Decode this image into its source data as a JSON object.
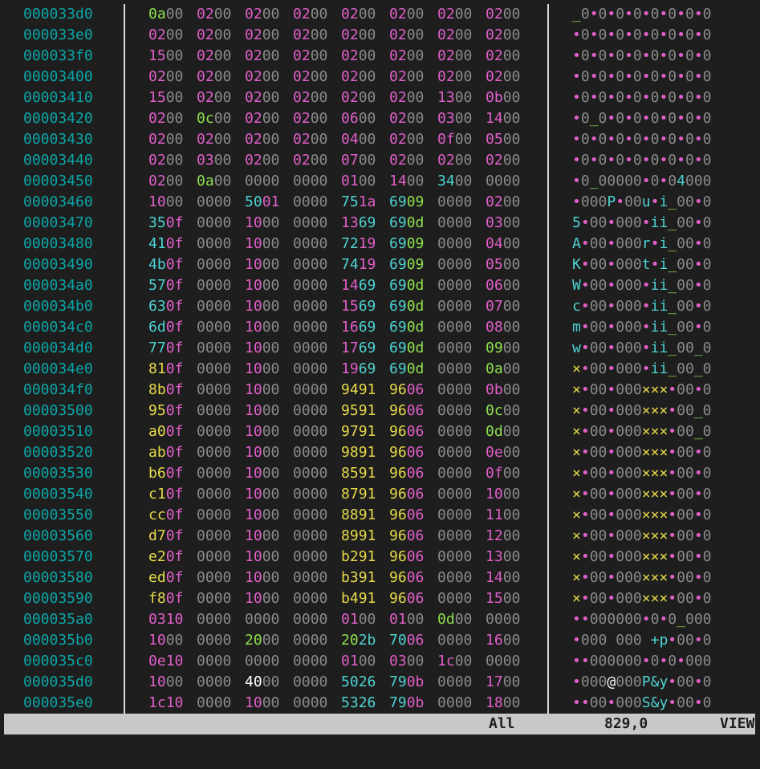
{
  "palette": {
    "offset": "#0aa6a6",
    "m": "#e05fc8",
    "z": "#8a8a8a",
    "c": "#4fd1d1",
    "y": "#e6d94a",
    "g": "#8ee04f",
    "w": "#ffffff",
    "status_bg": "#c6c9c6"
  },
  "rows": [
    {
      "offset": "000033d0",
      "groups": [
        "0a00",
        "0200",
        "0200",
        "0200",
        "0200",
        "0200",
        "0200",
        "0200"
      ],
      "ascii": "_0•0•0•0•0•0•0•0",
      "hex_colors": [
        "gz",
        "mz",
        "mz",
        "mz",
        "mz",
        "mz",
        "mz",
        "mz"
      ],
      "ascii_colors": "gzmzmzmzmzmzmzmz"
    },
    {
      "offset": "000033e0",
      "groups": [
        "0200",
        "0200",
        "0200",
        "0200",
        "0200",
        "0200",
        "0200",
        "0200"
      ],
      "ascii": "•0•0•0•0•0•0•0•0",
      "hex_colors": [
        "mz",
        "mz",
        "mz",
        "mz",
        "mz",
        "mz",
        "mz",
        "mz"
      ],
      "ascii_colors": "mzmzmzmzmzmzmzmz"
    },
    {
      "offset": "000033f0",
      "groups": [
        "1500",
        "0200",
        "0200",
        "0200",
        "0200",
        "0200",
        "0200",
        "0200"
      ],
      "ascii": "•0•0•0•0•0•0•0•0",
      "hex_colors": [
        "mz",
        "mz",
        "mz",
        "mz",
        "mz",
        "mz",
        "mz",
        "mz"
      ],
      "ascii_colors": "mzmzmzmzmzmzmzmz"
    },
    {
      "offset": "00003400",
      "groups": [
        "0200",
        "0200",
        "0200",
        "0200",
        "0200",
        "0200",
        "0200",
        "0200"
      ],
      "ascii": "•0•0•0•0•0•0•0•0",
      "hex_colors": [
        "mz",
        "mz",
        "mz",
        "mz",
        "mz",
        "mz",
        "mz",
        "mz"
      ],
      "ascii_colors": "mzmzmzmzmzmzmzmz"
    },
    {
      "offset": "00003410",
      "groups": [
        "1500",
        "0200",
        "0200",
        "0200",
        "0200",
        "0200",
        "1300",
        "0b00"
      ],
      "ascii": "•0•0•0•0•0•0•0•0",
      "hex_colors": [
        "mz",
        "mz",
        "mz",
        "mz",
        "mz",
        "mz",
        "mz",
        "mz"
      ],
      "ascii_colors": "mzmzmzmzmzmzmzmz"
    },
    {
      "offset": "00003420",
      "groups": [
        "0200",
        "0c00",
        "0200",
        "0200",
        "0600",
        "0200",
        "0300",
        "1400"
      ],
      "ascii": "•0_0•0•0•0•0•0•0",
      "hex_colors": [
        "mz",
        "gz",
        "mz",
        "mz",
        "mz",
        "mz",
        "mz",
        "mz"
      ],
      "ascii_colors": "mzgzmzmzmzmzmzmz"
    },
    {
      "offset": "00003430",
      "groups": [
        "0200",
        "0200",
        "0200",
        "0200",
        "0400",
        "0200",
        "0f00",
        "0500"
      ],
      "ascii": "•0•0•0•0•0•0•0•0",
      "hex_colors": [
        "mz",
        "mz",
        "mz",
        "mz",
        "mz",
        "mz",
        "mz",
        "mz"
      ],
      "ascii_colors": "mzmzmzmzmzmzmzmz"
    },
    {
      "offset": "00003440",
      "groups": [
        "0200",
        "0300",
        "0200",
        "0200",
        "0700",
        "0200",
        "0200",
        "0200"
      ],
      "ascii": "•0•0•0•0•0•0•0•0",
      "hex_colors": [
        "mz",
        "mz",
        "mz",
        "mz",
        "mz",
        "mz",
        "mz",
        "mz"
      ],
      "ascii_colors": "mzmzmzmzmzmzmzmz"
    },
    {
      "offset": "00003450",
      "groups": [
        "0200",
        "0a00",
        "0000",
        "0000",
        "0100",
        "1400",
        "3400",
        "0000"
      ],
      "ascii": "•0_00000•0•04000",
      "hex_colors": [
        "mz",
        "gz",
        "zz",
        "zz",
        "mz",
        "mz",
        "cz",
        "zz"
      ],
      "ascii_colors": "mzgzzzzzmzmzczzz"
    },
    {
      "offset": "00003460",
      "groups": [
        "1000",
        "0000",
        "5001",
        "0000",
        "751a",
        "6909",
        "0000",
        "0200"
      ],
      "ascii": "•000P•00u•i_00•0",
      "hex_colors": [
        "mz",
        "zz",
        "cm",
        "zz",
        "cm",
        "cg",
        "zz",
        "mz"
      ],
      "ascii_colors": "mzzzcmzzcmcgzzmz"
    },
    {
      "offset": "00003470",
      "groups": [
        "350f",
        "0000",
        "1000",
        "0000",
        "1369",
        "690d",
        "0000",
        "0300"
      ],
      "ascii": "5•00•000•ii_00•0",
      "hex_colors": [
        "cm",
        "zz",
        "mz",
        "zz",
        "mc",
        "cg",
        "zz",
        "mz"
      ],
      "ascii_colors": "cmzzmzzzmccgzzmz"
    },
    {
      "offset": "00003480",
      "groups": [
        "410f",
        "0000",
        "1000",
        "0000",
        "7219",
        "6909",
        "0000",
        "0400"
      ],
      "ascii": "A•00•000r•i_00•0",
      "hex_colors": [
        "cm",
        "zz",
        "mz",
        "zz",
        "cm",
        "cg",
        "zz",
        "mz"
      ],
      "ascii_colors": "cmzzmzzzcmcgzzmz"
    },
    {
      "offset": "00003490",
      "groups": [
        "4b0f",
        "0000",
        "1000",
        "0000",
        "7419",
        "6909",
        "0000",
        "0500"
      ],
      "ascii": "K•00•000t•i_00•0",
      "hex_colors": [
        "cm",
        "zz",
        "mz",
        "zz",
        "cm",
        "cg",
        "zz",
        "mz"
      ],
      "ascii_colors": "cmzzmzzzcmcgzzmz"
    },
    {
      "offset": "000034a0",
      "groups": [
        "570f",
        "0000",
        "1000",
        "0000",
        "1469",
        "690d",
        "0000",
        "0600"
      ],
      "ascii": "W•00•000•ii_00•0",
      "hex_colors": [
        "cm",
        "zz",
        "mz",
        "zz",
        "mc",
        "cg",
        "zz",
        "mz"
      ],
      "ascii_colors": "cmzzmzzzmccgzzmz"
    },
    {
      "offset": "000034b0",
      "groups": [
        "630f",
        "0000",
        "1000",
        "0000",
        "1569",
        "690d",
        "0000",
        "0700"
      ],
      "ascii": "c•00•000•ii_00•0",
      "hex_colors": [
        "cm",
        "zz",
        "mz",
        "zz",
        "mc",
        "cg",
        "zz",
        "mz"
      ],
      "ascii_colors": "cmzzmzzzmccgzzmz"
    },
    {
      "offset": "000034c0",
      "groups": [
        "6d0f",
        "0000",
        "1000",
        "0000",
        "1669",
        "690d",
        "0000",
        "0800"
      ],
      "ascii": "m•00•000•ii_00•0",
      "hex_colors": [
        "cm",
        "zz",
        "mz",
        "zz",
        "mc",
        "cg",
        "zz",
        "mz"
      ],
      "ascii_colors": "cmzzmzzzmccgzzmz"
    },
    {
      "offset": "000034d0",
      "groups": [
        "770f",
        "0000",
        "1000",
        "0000",
        "1769",
        "690d",
        "0000",
        "0900"
      ],
      "ascii": "w•00•000•ii_00_0",
      "hex_colors": [
        "cm",
        "zz",
        "mz",
        "zz",
        "mc",
        "cg",
        "zz",
        "gz"
      ],
      "ascii_colors": "cmzzmzzzmccgzzgz"
    },
    {
      "offset": "000034e0",
      "groups": [
        "810f",
        "0000",
        "1000",
        "0000",
        "1969",
        "690d",
        "0000",
        "0a00"
      ],
      "ascii": "×•00•000•ii_00_0",
      "hex_colors": [
        "ym",
        "zz",
        "mz",
        "zz",
        "mc",
        "cg",
        "zz",
        "gz"
      ],
      "ascii_colors": "ymzzmzzzmccgzzgz"
    },
    {
      "offset": "000034f0",
      "groups": [
        "8b0f",
        "0000",
        "1000",
        "0000",
        "9491",
        "9606",
        "0000",
        "0b00"
      ],
      "ascii": "×•00•000×××•00•0",
      "hex_colors": [
        "ym",
        "zz",
        "mz",
        "zz",
        "yy",
        "ym",
        "zz",
        "mz"
      ],
      "ascii_colors": "ymzzmzzzyyymzzmz"
    },
    {
      "offset": "00003500",
      "groups": [
        "950f",
        "0000",
        "1000",
        "0000",
        "9591",
        "9606",
        "0000",
        "0c00"
      ],
      "ascii": "×•00•000×××•00_0",
      "hex_colors": [
        "ym",
        "zz",
        "mz",
        "zz",
        "yy",
        "ym",
        "zz",
        "gz"
      ],
      "ascii_colors": "ymzzmzzzyyymzzgz"
    },
    {
      "offset": "00003510",
      "groups": [
        "a00f",
        "0000",
        "1000",
        "0000",
        "9791",
        "9606",
        "0000",
        "0d00"
      ],
      "ascii": "×•00•000×××•00_0",
      "hex_colors": [
        "ym",
        "zz",
        "mz",
        "zz",
        "yy",
        "ym",
        "zz",
        "gz"
      ],
      "ascii_colors": "ymzzmzzzyyymzzgz"
    },
    {
      "offset": "00003520",
      "groups": [
        "ab0f",
        "0000",
        "1000",
        "0000",
        "9891",
        "9606",
        "0000",
        "0e00"
      ],
      "ascii": "×•00•000×××•00•0",
      "hex_colors": [
        "ym",
        "zz",
        "mz",
        "zz",
        "yy",
        "ym",
        "zz",
        "mz"
      ],
      "ascii_colors": "ymzzmzzzyyymzzmz"
    },
    {
      "offset": "00003530",
      "groups": [
        "b60f",
        "0000",
        "1000",
        "0000",
        "8591",
        "9606",
        "0000",
        "0f00"
      ],
      "ascii": "×•00•000×××•00•0",
      "hex_colors": [
        "ym",
        "zz",
        "mz",
        "zz",
        "yy",
        "ym",
        "zz",
        "mz"
      ],
      "ascii_colors": "ymzzmzzzyyymzzmz"
    },
    {
      "offset": "00003540",
      "groups": [
        "c10f",
        "0000",
        "1000",
        "0000",
        "8791",
        "9606",
        "0000",
        "1000"
      ],
      "ascii": "×•00•000×××•00•0",
      "hex_colors": [
        "ym",
        "zz",
        "mz",
        "zz",
        "yy",
        "ym",
        "zz",
        "mz"
      ],
      "ascii_colors": "ymzzmzzzyyymzzmz"
    },
    {
      "offset": "00003550",
      "groups": [
        "cc0f",
        "0000",
        "1000",
        "0000",
        "8891",
        "9606",
        "0000",
        "1100"
      ],
      "ascii": "×•00•000×××•00•0",
      "hex_colors": [
        "ym",
        "zz",
        "mz",
        "zz",
        "yy",
        "ym",
        "zz",
        "mz"
      ],
      "ascii_colors": "ymzzmzzzyyymzzmz"
    },
    {
      "offset": "00003560",
      "groups": [
        "d70f",
        "0000",
        "1000",
        "0000",
        "8991",
        "9606",
        "0000",
        "1200"
      ],
      "ascii": "×•00•000×××•00•0",
      "hex_colors": [
        "ym",
        "zz",
        "mz",
        "zz",
        "yy",
        "ym",
        "zz",
        "mz"
      ],
      "ascii_colors": "ymzzmzzzyyymzzmz"
    },
    {
      "offset": "00003570",
      "groups": [
        "e20f",
        "0000",
        "1000",
        "0000",
        "b291",
        "9606",
        "0000",
        "1300"
      ],
      "ascii": "×•00•000×××•00•0",
      "hex_colors": [
        "ym",
        "zz",
        "mz",
        "zz",
        "yy",
        "ym",
        "zz",
        "mz"
      ],
      "ascii_colors": "ymzzmzzzyyymzzmz"
    },
    {
      "offset": "00003580",
      "groups": [
        "ed0f",
        "0000",
        "1000",
        "0000",
        "b391",
        "9606",
        "0000",
        "1400"
      ],
      "ascii": "×•00•000×××•00•0",
      "hex_colors": [
        "ym",
        "zz",
        "mz",
        "zz",
        "yy",
        "ym",
        "zz",
        "mz"
      ],
      "ascii_colors": "ymzzmzzzyyymzzmz"
    },
    {
      "offset": "00003590",
      "groups": [
        "f80f",
        "0000",
        "1000",
        "0000",
        "b491",
        "9606",
        "0000",
        "1500"
      ],
      "ascii": "×•00•000×××•00•0",
      "hex_colors": [
        "ym",
        "zz",
        "mz",
        "zz",
        "yy",
        "ym",
        "zz",
        "mz"
      ],
      "ascii_colors": "ymzzmzzzyyymzzmz"
    },
    {
      "offset": "000035a0",
      "groups": [
        "0310",
        "0000",
        "0000",
        "0000",
        "0100",
        "0100",
        "0d00",
        "0000"
      ],
      "ascii": "••000000•0•0_000",
      "hex_colors": [
        "mm",
        "zz",
        "zz",
        "zz",
        "mz",
        "mz",
        "gz",
        "zz"
      ],
      "ascii_colors": "mmzzzzzzmzmzgzzz"
    },
    {
      "offset": "000035b0",
      "groups": [
        "1000",
        "0000",
        "2000",
        "0000",
        "202b",
        "7006",
        "0000",
        "1600"
      ],
      "ascii": "•000 000 +p•00•0",
      "hex_colors": [
        "mz",
        "zz",
        "gz",
        "zz",
        "gc",
        "cm",
        "zz",
        "mz"
      ],
      "ascii_colors": "mzzzgzzzgccmzzmz"
    },
    {
      "offset": "000035c0",
      "groups": [
        "0e10",
        "0000",
        "0000",
        "0000",
        "0100",
        "0300",
        "1c00",
        "0000"
      ],
      "ascii": "••000000•0•0•000",
      "hex_colors": [
        "mm",
        "zz",
        "zz",
        "zz",
        "mz",
        "mz",
        "mz",
        "zz"
      ],
      "ascii_colors": "mmzzzzzzmzmzmzzz"
    },
    {
      "offset": "000035d0",
      "groups": [
        "1000",
        "0000",
        "4000",
        "0000",
        "5026",
        "790b",
        "0000",
        "1700"
      ],
      "ascii": "•000@000P&y•00•0",
      "hex_colors": [
        "mz",
        "zz",
        "wz",
        "zz",
        "cc",
        "cm",
        "zz",
        "mz"
      ],
      "ascii_colors": "mzzzwzzzcccmzzmz"
    },
    {
      "offset": "000035e0",
      "groups": [
        "1c10",
        "0000",
        "1000",
        "0000",
        "5326",
        "790b",
        "0000",
        "1800"
      ],
      "ascii": "••00•000S&y•00•0",
      "hex_colors": [
        "mm",
        "zz",
        "mz",
        "zz",
        "cc",
        "cm",
        "zz",
        "mz"
      ],
      "ascii_colors": "mmzzmzzzcccmzzmz"
    }
  ],
  "status": {
    "mode": "All",
    "position": "829,0",
    "view": "VIEW"
  }
}
